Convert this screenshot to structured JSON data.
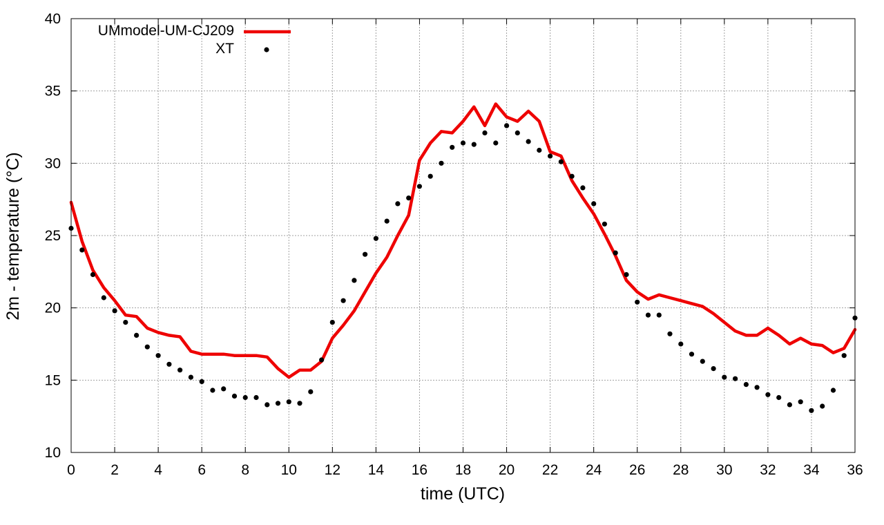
{
  "chart_data": {
    "type": "line",
    "title": "",
    "xlabel": "time (UTC)",
    "ylabel": "2m - temperature (°C)",
    "xlim": [
      0,
      36
    ],
    "ylim": [
      10,
      40
    ],
    "x_ticks": [
      0,
      2,
      4,
      6,
      8,
      10,
      12,
      14,
      16,
      18,
      20,
      22,
      24,
      26,
      28,
      30,
      32,
      34,
      36
    ],
    "y_ticks": [
      10,
      15,
      20,
      25,
      30,
      35,
      40
    ],
    "grid": true,
    "legend_position": "top-left",
    "series": [
      {
        "name": "UMmodel-UM-CJ209",
        "style": "line",
        "color": "#ee0000",
        "x": [
          0,
          0.5,
          1,
          1.5,
          2,
          2.5,
          3,
          3.5,
          4,
          4.5,
          5,
          5.5,
          6,
          6.5,
          7,
          7.5,
          8,
          8.5,
          9,
          9.5,
          10,
          10.5,
          11,
          11.5,
          12,
          12.5,
          13,
          13.5,
          14,
          14.5,
          15,
          15.5,
          16,
          16.5,
          17,
          17.5,
          18,
          18.5,
          19,
          19.5,
          20,
          20.5,
          21,
          21.5,
          22,
          22.5,
          23,
          23.5,
          24,
          24.5,
          25,
          25.5,
          26,
          26.5,
          27,
          27.5,
          28,
          28.5,
          29,
          29.5,
          30,
          30.5,
          31,
          31.5,
          32,
          32.5,
          33,
          33.5,
          34,
          34.5,
          35,
          35.5,
          36
        ],
        "y": [
          27.3,
          24.6,
          22.6,
          21.4,
          20.5,
          19.5,
          19.4,
          18.6,
          18.3,
          18.1,
          18.0,
          17.0,
          16.8,
          16.8,
          16.8,
          16.7,
          16.7,
          16.7,
          16.6,
          15.8,
          15.2,
          15.7,
          15.7,
          16.3,
          17.9,
          18.8,
          19.8,
          21.1,
          22.4,
          23.5,
          25.0,
          26.4,
          30.2,
          31.4,
          32.2,
          32.1,
          32.9,
          33.9,
          32.6,
          34.1,
          33.2,
          32.9,
          33.6,
          32.9,
          30.8,
          30.5,
          28.8,
          27.6,
          26.5,
          25.1,
          23.6,
          21.9,
          21.1,
          20.6,
          20.9,
          20.7,
          20.5,
          20.3,
          20.1,
          19.6,
          19.0,
          18.4,
          18.1,
          18.1,
          18.6,
          18.1,
          17.5,
          17.9,
          17.5,
          17.4,
          16.9,
          17.2,
          18.5
        ]
      },
      {
        "name": "XT",
        "style": "points",
        "color": "#000000",
        "x": [
          0,
          0.5,
          1,
          1.5,
          2,
          2.5,
          3,
          3.5,
          4,
          4.5,
          5,
          5.5,
          6,
          6.5,
          7,
          7.5,
          8,
          8.5,
          9,
          9.5,
          10,
          10.5,
          11,
          11.5,
          12,
          12.5,
          13,
          13.5,
          14,
          14.5,
          15,
          15.5,
          16,
          16.5,
          17,
          17.5,
          18,
          18.5,
          19,
          19.5,
          20,
          20.5,
          21,
          21.5,
          22,
          22.5,
          23,
          23.5,
          24,
          24.5,
          25,
          25.5,
          26,
          26.5,
          27,
          27.5,
          28,
          28.5,
          29,
          29.5,
          30,
          30.5,
          31,
          31.5,
          32,
          32.5,
          33,
          33.5,
          34,
          34.5,
          35,
          35.5,
          36
        ],
        "y": [
          25.5,
          24.0,
          22.3,
          20.7,
          19.8,
          19.0,
          18.1,
          17.3,
          16.7,
          16.1,
          15.7,
          15.2,
          14.9,
          14.3,
          14.4,
          13.9,
          13.8,
          13.8,
          13.3,
          13.4,
          13.5,
          13.4,
          14.2,
          16.4,
          19.0,
          20.5,
          21.9,
          23.7,
          24.8,
          26.0,
          27.2,
          27.6,
          28.4,
          29.1,
          30.0,
          31.1,
          31.4,
          31.3,
          32.1,
          31.4,
          32.6,
          32.1,
          31.5,
          30.9,
          30.5,
          30.1,
          29.1,
          28.3,
          27.2,
          25.8,
          23.8,
          22.3,
          20.4,
          19.5,
          19.5,
          18.2,
          17.5,
          16.8,
          16.3,
          15.8,
          15.2,
          15.1,
          14.7,
          14.5,
          14.0,
          13.8,
          13.3,
          13.5,
          12.9,
          13.2,
          14.3,
          16.7,
          19.3
        ]
      }
    ]
  }
}
